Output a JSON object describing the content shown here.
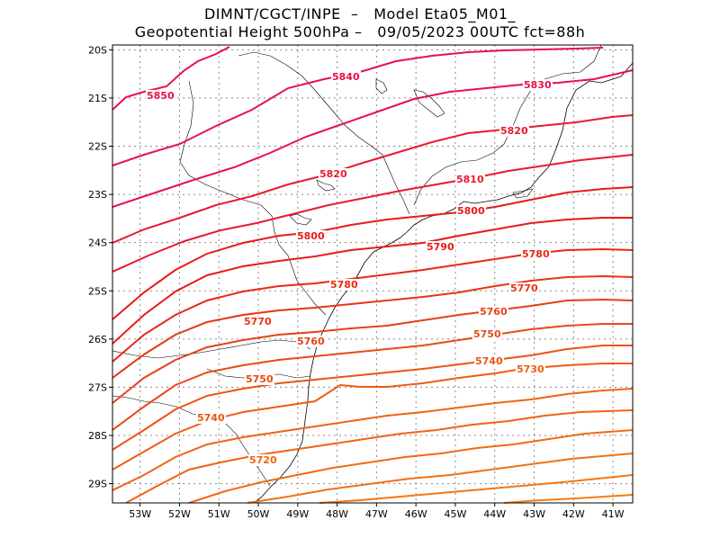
{
  "title": {
    "line1": "DIMNT/CGCT/INPE  –   Model Eta05_M01_",
    "line2": "Geopotential Height 500hPa –   09/05/2023 00UTC fct=88h"
  },
  "map": {
    "lon_range": [
      -53.7,
      -40.5
    ],
    "lat_range": [
      -29.4,
      -19.9
    ],
    "grid": "dotted",
    "lat_ticks": [
      {
        "value": -20,
        "label": "20S"
      },
      {
        "value": -21,
        "label": "21S"
      },
      {
        "value": -22,
        "label": "22S"
      },
      {
        "value": -23,
        "label": "23S"
      },
      {
        "value": -24,
        "label": "24S"
      },
      {
        "value": -25,
        "label": "25S"
      },
      {
        "value": -26,
        "label": "26S"
      },
      {
        "value": -27,
        "label": "27S"
      },
      {
        "value": -28,
        "label": "28S"
      },
      {
        "value": -29,
        "label": "29S"
      }
    ],
    "lon_ticks": [
      {
        "value": -53,
        "label": "53W"
      },
      {
        "value": -52,
        "label": "52W"
      },
      {
        "value": -51,
        "label": "51W"
      },
      {
        "value": -50,
        "label": "50W"
      },
      {
        "value": -49,
        "label": "49W"
      },
      {
        "value": -48,
        "label": "48W"
      },
      {
        "value": -47,
        "label": "47W"
      },
      {
        "value": -46,
        "label": "46W"
      },
      {
        "value": -45,
        "label": "45W"
      },
      {
        "value": -44,
        "label": "44W"
      },
      {
        "value": -43,
        "label": "43W"
      },
      {
        "value": -42,
        "label": "42W"
      },
      {
        "value": -41,
        "label": "41W"
      }
    ],
    "contours": [
      {
        "level": 5850,
        "color": "#e8104a"
      },
      {
        "level": 5840,
        "color": "#e8104a"
      },
      {
        "level": 5830,
        "color": "#e8104a"
      },
      {
        "level": 5820,
        "color": "#e81a30"
      },
      {
        "level": 5810,
        "color": "#e81a30"
      },
      {
        "level": 5800,
        "color": "#e81a1a"
      },
      {
        "level": 5790,
        "color": "#e81a1a"
      },
      {
        "level": 5780,
        "color": "#e82814"
      },
      {
        "level": 5770,
        "color": "#e83414"
      },
      {
        "level": 5760,
        "color": "#e84014"
      },
      {
        "level": 5750,
        "color": "#e84a14"
      },
      {
        "level": 5740,
        "color": "#ea5414"
      },
      {
        "level": 5730,
        "color": "#ee5c12"
      },
      {
        "level": 5720,
        "color": "#f06412"
      }
    ],
    "contour_labels": [
      {
        "text": "5850",
        "color": "#e8104a"
      },
      {
        "text": "5840",
        "color": "#e8104a"
      },
      {
        "text": "5830",
        "color": "#e8104a"
      },
      {
        "text": "5820",
        "color": "#e81a30"
      },
      {
        "text": "5820",
        "color": "#e81a30"
      },
      {
        "text": "5810",
        "color": "#e81a30"
      },
      {
        "text": "5800",
        "color": "#e81a1a"
      },
      {
        "text": "5800",
        "color": "#e81a1a"
      },
      {
        "text": "5790",
        "color": "#e81a1a"
      },
      {
        "text": "5780",
        "color": "#e82814"
      },
      {
        "text": "5780",
        "color": "#e82814"
      },
      {
        "text": "5770",
        "color": "#e83414"
      },
      {
        "text": "5770",
        "color": "#e83414"
      },
      {
        "text": "5760",
        "color": "#e84014"
      },
      {
        "text": "5760",
        "color": "#e84014"
      },
      {
        "text": "5750",
        "color": "#e84a14"
      },
      {
        "text": "5750",
        "color": "#e84a14"
      },
      {
        "text": "5740",
        "color": "#ea5414"
      },
      {
        "text": "5740",
        "color": "#ea5414"
      },
      {
        "text": "5730",
        "color": "#ee5c12"
      },
      {
        "text": "5720",
        "color": "#f06412"
      }
    ]
  }
}
